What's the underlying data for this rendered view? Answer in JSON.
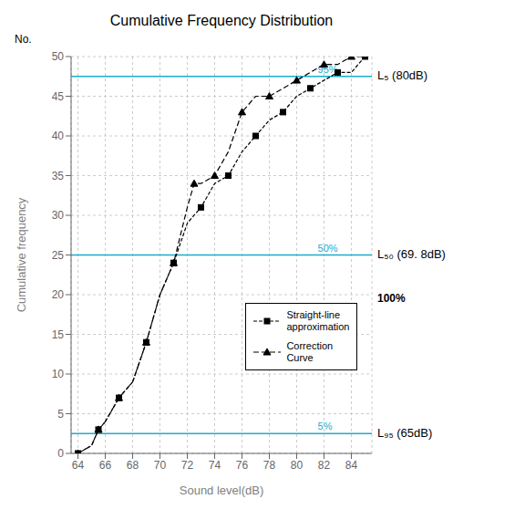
{
  "chart_data": {
    "type": "line",
    "title": "Cumulative Frequency Distribution",
    "x_label": "Sound level(dB)",
    "y_label": "Cumulative frequency",
    "y_axis_note": "No.",
    "right_note": "100%",
    "xlim": [
      63.5,
      85.5
    ],
    "ylim": [
      0,
      50
    ],
    "xticks": [
      64,
      66,
      68,
      70,
      72,
      74,
      76,
      78,
      80,
      82,
      84
    ],
    "yticks": [
      0,
      5,
      10,
      15,
      20,
      25,
      30,
      35,
      40,
      45,
      50
    ],
    "grid": true,
    "legend": "lower right",
    "series": [
      {
        "name": "Straight-line\napproximation",
        "color": "#000000",
        "marker": "square",
        "line_style": "dashed",
        "x": [
          64,
          65,
          65.5,
          66,
          67,
          68,
          69,
          70,
          71,
          72,
          73,
          74,
          75,
          76,
          77,
          78,
          79,
          80,
          81,
          82,
          83,
          84,
          85
        ],
        "values": [
          0,
          1,
          3,
          4,
          7,
          9,
          14,
          20,
          24,
          29,
          31,
          34,
          35,
          38,
          40,
          42,
          43,
          45,
          46,
          47,
          48,
          48,
          50
        ]
      },
      {
        "name": "Correction\nCurve",
        "color": "#000000",
        "marker": "triangle",
        "line_style": "dashed",
        "x": [
          64,
          65,
          65.5,
          66,
          67,
          68,
          69,
          70,
          71,
          72,
          72.5,
          73,
          74,
          75,
          76,
          77,
          78,
          79,
          80,
          81,
          82,
          83,
          84,
          85
        ],
        "values": [
          0,
          1,
          3,
          4,
          7,
          9,
          14,
          20,
          24,
          31,
          34,
          34,
          35,
          38,
          43,
          45,
          45,
          46,
          47,
          48,
          49,
          49,
          50,
          50
        ]
      }
    ],
    "reference_lines": [
      {
        "y": 47.5,
        "label": "95%",
        "side_label": "L₅ (80dB)",
        "color": "#1AADCE"
      },
      {
        "y": 25,
        "label": "50%",
        "side_label": "L₅₀ (69. 8dB)",
        "color": "#1AADCE"
      },
      {
        "y": 2.5,
        "label": "5%",
        "side_label": "L₉₅ (65dB)",
        "color": "#1AADCE"
      }
    ]
  }
}
